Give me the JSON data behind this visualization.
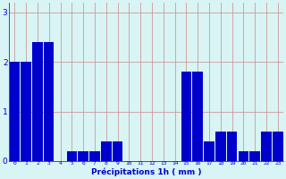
{
  "hours": [
    0,
    1,
    2,
    3,
    4,
    5,
    6,
    7,
    8,
    9,
    10,
    11,
    12,
    13,
    14,
    15,
    16,
    17,
    18,
    19,
    20,
    21,
    22,
    23
  ],
  "values": [
    2.0,
    2.0,
    2.4,
    2.4,
    0.0,
    0.2,
    0.2,
    0.2,
    0.4,
    0.4,
    0.0,
    0.0,
    0.0,
    0.0,
    0.0,
    1.8,
    1.8,
    0.4,
    0.6,
    0.6,
    0.2,
    0.2,
    0.6,
    0.6
  ],
  "bar_color": "#0000cc",
  "background_color": "#d8f4f4",
  "grid_color": "#cc8888",
  "xlabel": "Précipitations 1h ( mm )",
  "xlabel_color": "#0000cc",
  "tick_color": "#0000cc",
  "ylim": [
    0,
    3.2
  ],
  "yticks": [
    0,
    1,
    2,
    3
  ],
  "figsize": [
    3.2,
    2.0
  ],
  "dpi": 100
}
